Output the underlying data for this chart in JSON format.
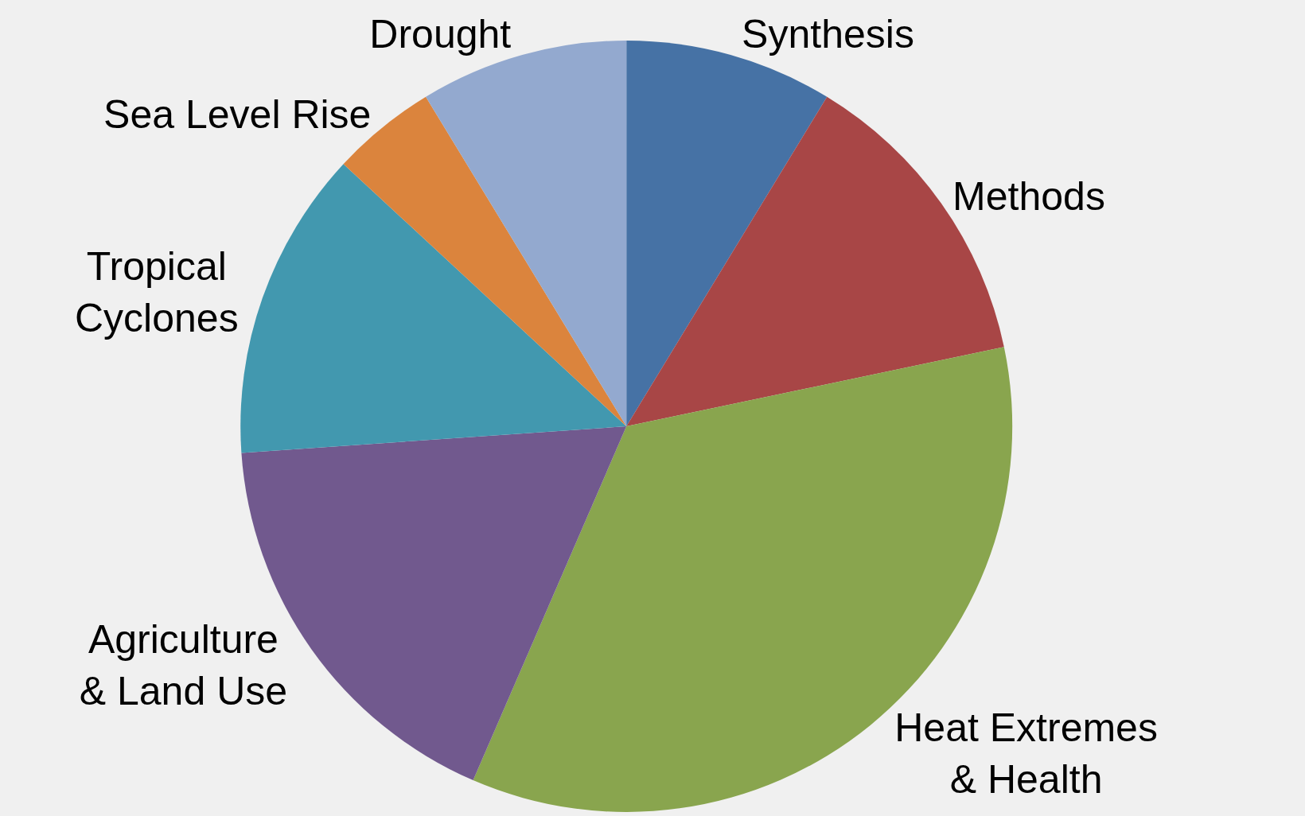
{
  "chart_data": {
    "type": "pie",
    "categories": [
      "Synthesis",
      "Methods",
      "Heat Extremes\n& Health",
      "Agriculture\n& Land Use",
      "Tropical\nCyclones",
      "Sea Level Rise",
      "Drought"
    ],
    "values": [
      8.7,
      13.0,
      34.8,
      17.4,
      13.0,
      4.4,
      8.7
    ],
    "colors": [
      "#4672a5",
      "#a84646",
      "#89a54e",
      "#71598e",
      "#4298af",
      "#db843d",
      "#93a9cf"
    ],
    "legend": false
  }
}
